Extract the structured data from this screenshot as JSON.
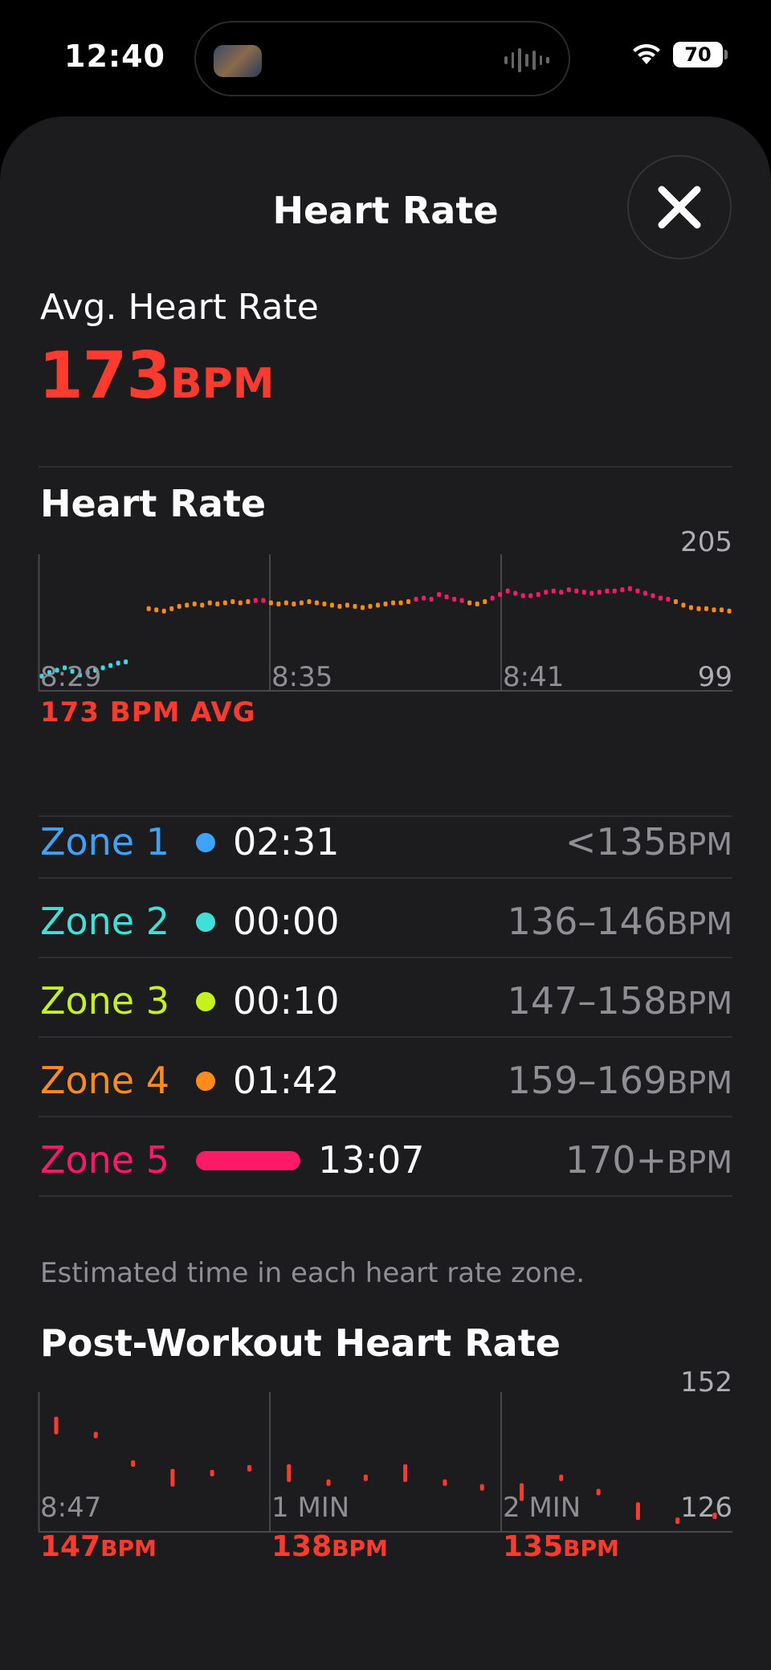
{
  "status_bar": {
    "time": "12:40",
    "battery": "70",
    "icons": [
      "wifi-icon",
      "battery-icon",
      "audio-wave-icon"
    ]
  },
  "sheet": {
    "title": "Heart Rate",
    "close_icon": "close-icon"
  },
  "average": {
    "label": "Avg. Heart Rate",
    "value": "173",
    "unit": "BPM"
  },
  "heart_rate_section": {
    "title": "Heart Rate",
    "caption": "173 BPM AVG"
  },
  "zones": {
    "rows": [
      {
        "label": "Zone 1",
        "time": "02:31",
        "range": "<135",
        "unit": "BPM",
        "color": "#3ea2ff",
        "share": 0.16
      },
      {
        "label": "Zone 2",
        "time": "00:00",
        "range": "136–146",
        "unit": "BPM",
        "color": "#3fe0d8",
        "share": 0.0
      },
      {
        "label": "Zone 3",
        "time": "00:10",
        "range": "147–158",
        "unit": "BPM",
        "color": "#c5f21d",
        "share": 0.01
      },
      {
        "label": "Zone 4",
        "time": "01:42",
        "range": "159–169",
        "unit": "BPM",
        "color": "#ff8c1a",
        "share": 0.1
      },
      {
        "label": "Zone 5",
        "time": "13:07",
        "range": "170+",
        "unit": "BPM",
        "color": "#ff1a68",
        "share": 1.0
      }
    ],
    "footnote": "Estimated time in each heart rate zone."
  },
  "post_workout": {
    "title": "Post-Workout Heart Rate",
    "readings": [
      {
        "value": "147",
        "unit": "BPM"
      },
      {
        "value": "138",
        "unit": "BPM"
      },
      {
        "value": "135",
        "unit": "BPM"
      }
    ]
  },
  "chart_data": [
    {
      "type": "scatter",
      "x_tick_labels": [
        "8:29",
        "8:35",
        "8:41"
      ],
      "ylim": [
        99,
        205
      ],
      "y_tick_labels": [
        "205",
        "99"
      ],
      "grid": "vertical",
      "x_unit": "minutes since 8:29",
      "series": [
        {
          "points": [
            [
              0.0,
              106
            ],
            [
              0.2,
              109
            ],
            [
              0.4,
              111
            ],
            [
              0.6,
              113
            ],
            [
              0.8,
              110
            ],
            [
              1.0,
              107
            ],
            [
              1.2,
              109
            ],
            [
              1.4,
              111
            ],
            [
              1.6,
              113
            ],
            [
              1.8,
              115
            ],
            [
              2.0,
              117
            ],
            [
              2.2,
              118
            ],
            [
              2.8,
              163
            ],
            [
              3.0,
              162
            ],
            [
              3.2,
              161
            ],
            [
              3.4,
              163
            ],
            [
              3.6,
              165
            ],
            [
              3.8,
              166
            ],
            [
              4.0,
              167
            ],
            [
              4.2,
              166
            ],
            [
              4.4,
              168
            ],
            [
              4.6,
              167
            ],
            [
              4.8,
              168
            ],
            [
              5.0,
              169
            ],
            [
              5.2,
              168
            ],
            [
              5.4,
              169
            ],
            [
              5.6,
              170
            ],
            [
              5.8,
              170
            ],
            [
              6.0,
              168
            ],
            [
              6.2,
              167
            ],
            [
              6.4,
              168
            ],
            [
              6.6,
              167
            ],
            [
              6.8,
              168
            ],
            [
              7.0,
              169
            ],
            [
              7.2,
              168
            ],
            [
              7.4,
              167
            ],
            [
              7.6,
              166
            ],
            [
              7.8,
              165
            ],
            [
              8.0,
              166
            ],
            [
              8.2,
              165
            ],
            [
              8.4,
              164
            ],
            [
              8.6,
              165
            ],
            [
              8.8,
              166
            ],
            [
              9.0,
              167
            ],
            [
              9.2,
              168
            ],
            [
              9.4,
              168
            ],
            [
              9.6,
              169
            ],
            [
              9.8,
              171
            ],
            [
              10.0,
              172
            ],
            [
              10.2,
              171
            ],
            [
              10.4,
              175
            ],
            [
              10.6,
              173
            ],
            [
              10.8,
              171
            ],
            [
              11.0,
              170
            ],
            [
              11.2,
              168
            ],
            [
              11.4,
              167
            ],
            [
              11.6,
              169
            ],
            [
              11.8,
              172
            ],
            [
              12.0,
              175
            ],
            [
              12.2,
              178
            ],
            [
              12.4,
              176
            ],
            [
              12.6,
              174
            ],
            [
              12.8,
              174
            ],
            [
              13.0,
              175
            ],
            [
              13.2,
              177
            ],
            [
              13.4,
              178
            ],
            [
              13.6,
              177
            ],
            [
              13.8,
              179
            ],
            [
              14.0,
              178
            ],
            [
              14.2,
              177
            ],
            [
              14.4,
              176
            ],
            [
              14.6,
              177
            ],
            [
              14.8,
              178
            ],
            [
              15.0,
              178
            ],
            [
              15.2,
              179
            ],
            [
              15.4,
              180
            ],
            [
              15.6,
              178
            ],
            [
              15.8,
              176
            ],
            [
              16.0,
              174
            ],
            [
              16.2,
              172
            ],
            [
              16.4,
              171
            ],
            [
              16.6,
              169
            ],
            [
              16.8,
              166
            ],
            [
              17.0,
              164
            ],
            [
              17.2,
              163
            ],
            [
              17.4,
              163
            ],
            [
              17.6,
              162
            ],
            [
              17.8,
              162
            ],
            [
              18.0,
              161
            ]
          ]
        }
      ]
    },
    {
      "type": "scatter",
      "x_tick_labels": [
        "8:47",
        "1 MIN",
        "2 MIN"
      ],
      "ylim": [
        126,
        152
      ],
      "y_tick_labels": [
        "152",
        "126"
      ],
      "grid": "vertical",
      "x_unit": "minutes after workout end",
      "series": [
        {
          "points": [
            [
              0.0,
              147
            ],
            [
              0.17,
              145
            ],
            [
              0.33,
              139
            ],
            [
              0.5,
              136
            ],
            [
              0.67,
              137
            ],
            [
              0.83,
              138
            ],
            [
              1.0,
              137
            ],
            [
              1.17,
              135
            ],
            [
              1.33,
              136
            ],
            [
              1.5,
              137
            ],
            [
              1.67,
              135
            ],
            [
              1.83,
              134
            ],
            [
              2.0,
              133
            ],
            [
              2.17,
              136
            ],
            [
              2.33,
              133
            ],
            [
              2.5,
              129
            ],
            [
              2.67,
              127
            ],
            [
              2.83,
              128
            ]
          ]
        }
      ]
    }
  ]
}
